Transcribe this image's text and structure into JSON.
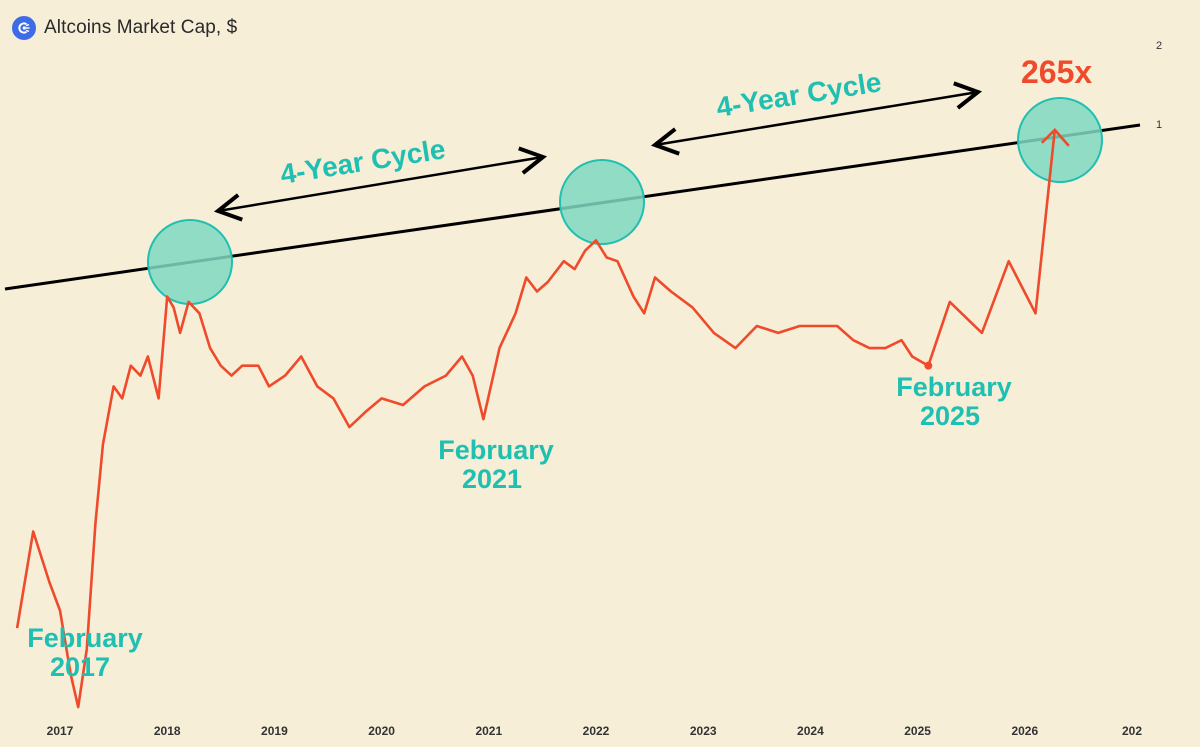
{
  "header": {
    "title": "Altcoins Market Cap, $",
    "icon": "coin-logo-icon"
  },
  "colors": {
    "background": "#f6eed7",
    "price_line": "#ef4a2b",
    "accent": "#1fbfb1",
    "circle_fill": "#7fd8c2",
    "trendline": "#000000",
    "logo": "#3e6be6"
  },
  "chart_data": {
    "type": "line",
    "title": "Altcoins Market Cap, $",
    "x_tick_labels": [
      "2017",
      "2018",
      "2019",
      "2020",
      "2021",
      "2022",
      "2023",
      "2024",
      "2025",
      "2026",
      "202"
    ],
    "y_tick_labels": [
      "2",
      "1"
    ],
    "series": [
      {
        "points": [
          [
            2016.6,
            0.012
          ],
          [
            2016.75,
            0.028
          ],
          [
            2016.9,
            0.018
          ],
          [
            2017.0,
            0.014
          ],
          [
            2017.1,
            0.008
          ],
          [
            2017.17,
            0.006
          ],
          [
            2017.25,
            0.01
          ],
          [
            2017.33,
            0.03
          ],
          [
            2017.4,
            0.06
          ],
          [
            2017.5,
            0.1
          ],
          [
            2017.58,
            0.09
          ],
          [
            2017.66,
            0.12
          ],
          [
            2017.75,
            0.11
          ],
          [
            2017.82,
            0.13
          ],
          [
            2017.92,
            0.09
          ],
          [
            2018.0,
            0.22
          ],
          [
            2018.06,
            0.2
          ],
          [
            2018.12,
            0.16
          ],
          [
            2018.2,
            0.21
          ],
          [
            2018.3,
            0.19
          ],
          [
            2018.4,
            0.14
          ],
          [
            2018.5,
            0.12
          ],
          [
            2018.6,
            0.11
          ],
          [
            2018.7,
            0.12
          ],
          [
            2018.85,
            0.12
          ],
          [
            2018.95,
            0.1
          ],
          [
            2019.1,
            0.11
          ],
          [
            2019.25,
            0.13
          ],
          [
            2019.4,
            0.1
          ],
          [
            2019.55,
            0.09
          ],
          [
            2019.7,
            0.07
          ],
          [
            2019.85,
            0.08
          ],
          [
            2020.0,
            0.09
          ],
          [
            2020.2,
            0.085
          ],
          [
            2020.4,
            0.1
          ],
          [
            2020.6,
            0.11
          ],
          [
            2020.75,
            0.13
          ],
          [
            2020.85,
            0.11
          ],
          [
            2020.95,
            0.075
          ],
          [
            2021.1,
            0.14
          ],
          [
            2021.25,
            0.19
          ],
          [
            2021.35,
            0.26
          ],
          [
            2021.45,
            0.23
          ],
          [
            2021.55,
            0.25
          ],
          [
            2021.7,
            0.3
          ],
          [
            2021.8,
            0.28
          ],
          [
            2021.9,
            0.33
          ],
          [
            2022.0,
            0.36
          ],
          [
            2022.1,
            0.31
          ],
          [
            2022.2,
            0.3
          ],
          [
            2022.35,
            0.22
          ],
          [
            2022.45,
            0.19
          ],
          [
            2022.55,
            0.26
          ],
          [
            2022.7,
            0.23
          ],
          [
            2022.9,
            0.2
          ],
          [
            2023.1,
            0.16
          ],
          [
            2023.3,
            0.14
          ],
          [
            2023.5,
            0.17
          ],
          [
            2023.7,
            0.16
          ],
          [
            2023.9,
            0.17
          ],
          [
            2024.1,
            0.17
          ],
          [
            2024.25,
            0.17
          ],
          [
            2024.4,
            0.15
          ],
          [
            2024.55,
            0.14
          ],
          [
            2024.7,
            0.14
          ],
          [
            2024.85,
            0.15
          ],
          [
            2024.95,
            0.13
          ],
          [
            2025.1,
            0.12
          ],
          [
            2025.3,
            0.21
          ],
          [
            2025.6,
            0.16
          ],
          [
            2025.85,
            0.3
          ],
          [
            2026.1,
            0.19
          ],
          [
            2026.28,
            0.95
          ]
        ]
      }
    ]
  },
  "annotations": {
    "cycle_1": "4-Year Cycle",
    "cycle_2": "4-Year Cycle",
    "multiplier": "265x",
    "feb_2017_month": "February",
    "feb_2017_year": "2017",
    "feb_2021_month": "February",
    "feb_2021_year": "2021",
    "feb_2025_month": "February",
    "feb_2025_year": "2025"
  }
}
